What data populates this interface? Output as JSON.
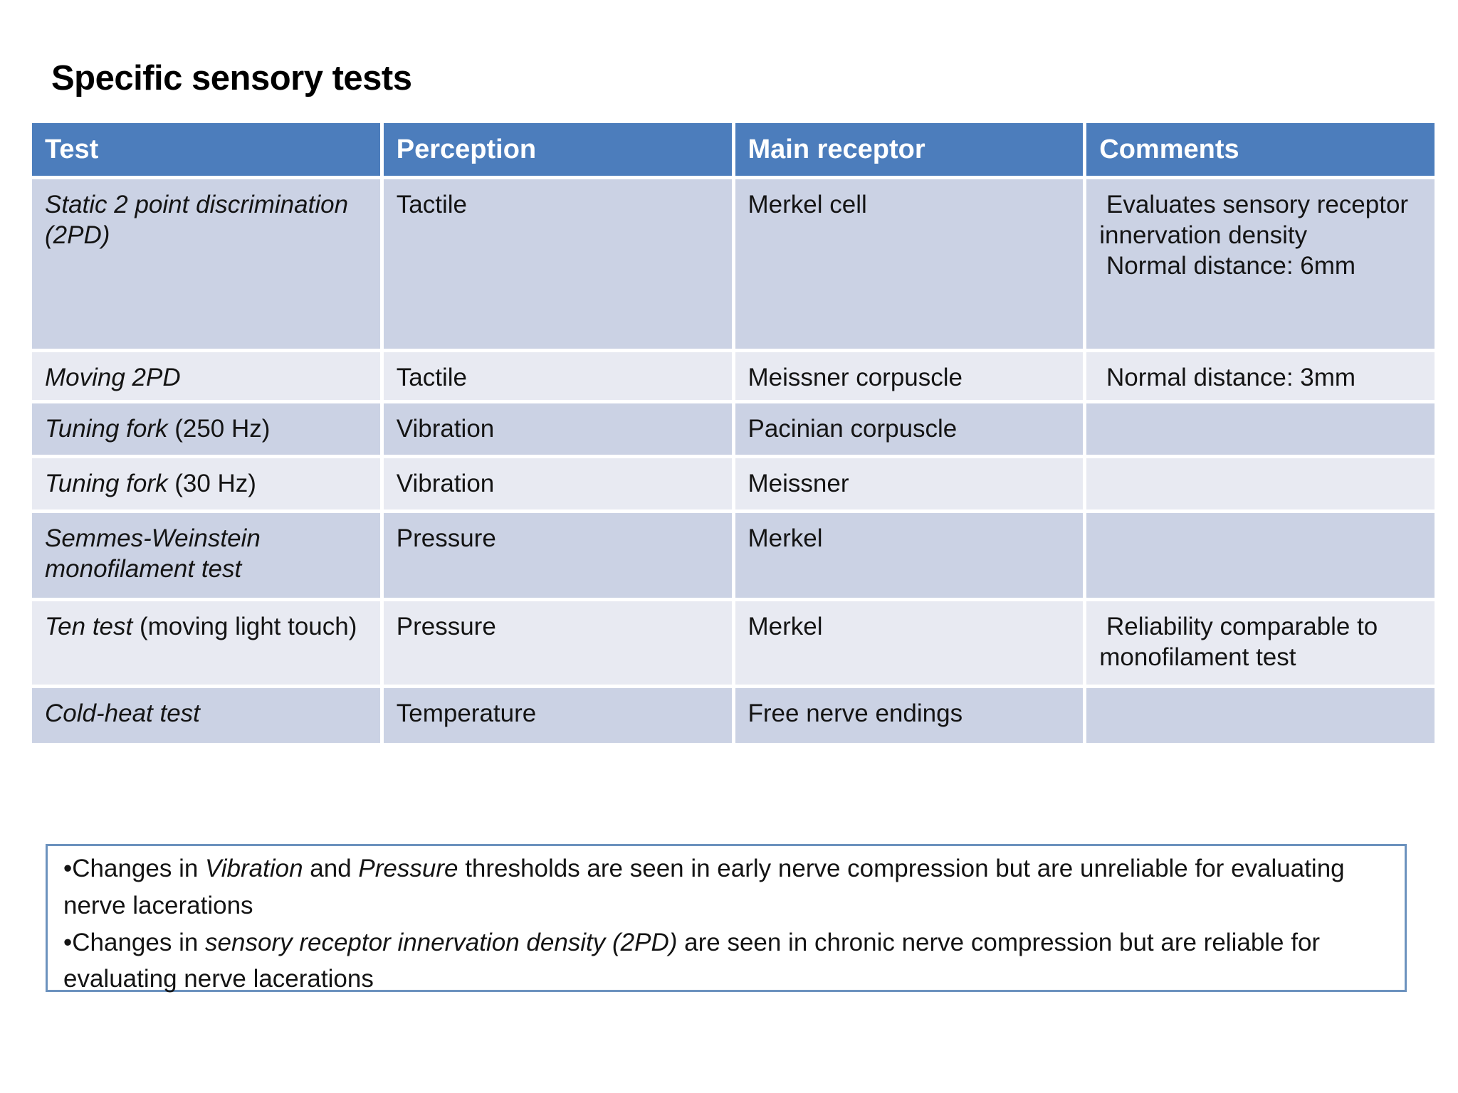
{
  "slide": {
    "title": "Specific sensory tests"
  },
  "colors": {
    "header_bg": "#4C7DBC",
    "header_text": "#FFFFFF",
    "row_band_dark": "#CBD2E4",
    "row_band_light": "#E8EAF2",
    "note_box_border": "#6C92BE",
    "body_text": "#141414",
    "background": "#FFFFFF"
  },
  "table": {
    "columns": [
      "Test",
      "Perception",
      "Main receptor",
      "Comments"
    ],
    "rows": [
      {
        "test_italic": "Static 2 point discrimination (2PD)",
        "test_regular": "",
        "perception": "Tactile",
        "receptor": "Merkel cell",
        "comments": " Evaluates sensory receptor innervation density\n Normal distance: 6mm"
      },
      {
        "test_italic": "Moving 2PD",
        "test_regular": "",
        "perception": "Tactile",
        "receptor": "Meissner corpuscle",
        "comments": " Normal distance: 3mm"
      },
      {
        "test_italic": "Tuning fork",
        "test_regular": " (250 Hz)",
        "perception": "Vibration",
        "receptor": "Pacinian corpuscle",
        "comments": ""
      },
      {
        "test_italic": "Tuning fork",
        "test_regular": " (30 Hz)",
        "perception": "Vibration",
        "receptor": "Meissner",
        "comments": ""
      },
      {
        "test_italic": "Semmes-Weinstein monofilament test",
        "test_regular": "",
        "perception": "Pressure",
        "receptor": "Merkel",
        "comments": ""
      },
      {
        "test_italic": "Ten test",
        "test_regular": " (moving light touch)",
        "perception": "Pressure",
        "receptor": "Merkel",
        "comments": " Reliability comparable to monofilament test"
      },
      {
        "test_italic": "Cold-heat test",
        "test_regular": "",
        "perception": "Temperature",
        "receptor": "Free nerve endings",
        "comments": ""
      }
    ]
  },
  "footer": {
    "bullets": [
      {
        "segments": [
          {
            "t": "•Changes in ",
            "i": false
          },
          {
            "t": "Vibration",
            "i": true
          },
          {
            "t": " and ",
            "i": false
          },
          {
            "t": "Pressure",
            "i": true
          },
          {
            "t": " thresholds are seen in early nerve compression but are unreliable for evaluating nerve lacerations",
            "i": false
          }
        ]
      },
      {
        "segments": [
          {
            "t": "•Changes in ",
            "i": false
          },
          {
            "t": "sensory receptor innervation density (2PD)",
            "i": true
          },
          {
            "t": " are seen in chronic nerve compression but are reliable for evaluating nerve lacerations",
            "i": false
          }
        ]
      }
    ]
  }
}
